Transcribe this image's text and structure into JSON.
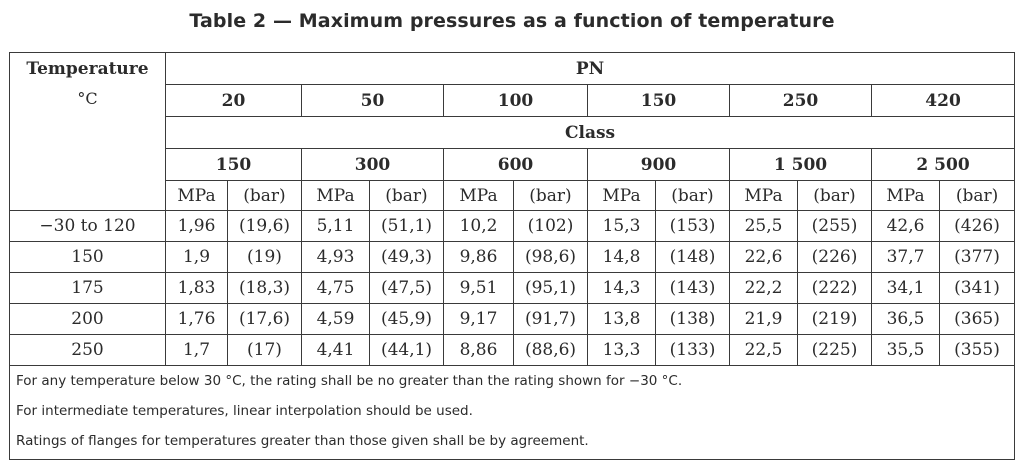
{
  "title": "Table 2 — Maximum pressures as a function of temperature",
  "header": {
    "temperature": "Temperature",
    "temperature_unit": "°C",
    "pn": "PN",
    "class": "Class",
    "pn_values": [
      "20",
      "50",
      "100",
      "150",
      "250",
      "420"
    ],
    "class_values": [
      "150",
      "300",
      "600",
      "900",
      "1 500",
      "2 500"
    ],
    "unit_mpa": "MPa",
    "unit_bar": "(bar)"
  },
  "rows": [
    {
      "temp": "−30 to 120",
      "cells": [
        "1,96",
        "(19,6)",
        "5,11",
        "(51,1)",
        "10,2",
        "(102)",
        "15,3",
        "(153)",
        "25,5",
        "(255)",
        "42,6",
        "(426)"
      ]
    },
    {
      "temp": "150",
      "cells": [
        "1,9",
        "(19)",
        "4,93",
        "(49,3)",
        "9,86",
        "(98,6)",
        "14,8",
        "(148)",
        "22,6",
        "(226)",
        "37,7",
        "(377)"
      ]
    },
    {
      "temp": "175",
      "cells": [
        "1,83",
        "(18,3)",
        "4,75",
        "(47,5)",
        "9,51",
        "(95,1)",
        "14,3",
        "(143)",
        "22,2",
        "(222)",
        "34,1",
        "(341)"
      ]
    },
    {
      "temp": "200",
      "cells": [
        "1,76",
        "(17,6)",
        "4,59",
        "(45,9)",
        "9,17",
        "(91,7)",
        "13,8",
        "(138)",
        "21,9",
        "(219)",
        "36,5",
        "(365)"
      ]
    },
    {
      "temp": "250",
      "cells": [
        "1,7",
        "(17)",
        "4,41",
        "(44,1)",
        "8,86",
        "(88,6)",
        "13,3",
        "(133)",
        "22,5",
        "(225)",
        "35,5",
        "(355)"
      ]
    }
  ],
  "notes": [
    "For any temperature below 30 °C, the rating shall be no greater than the rating shown for −30 °C.",
    "For intermediate temperatures, linear interpolation should be used.",
    "Ratings of flanges for temperatures greater than those given shall be by agreement."
  ]
}
